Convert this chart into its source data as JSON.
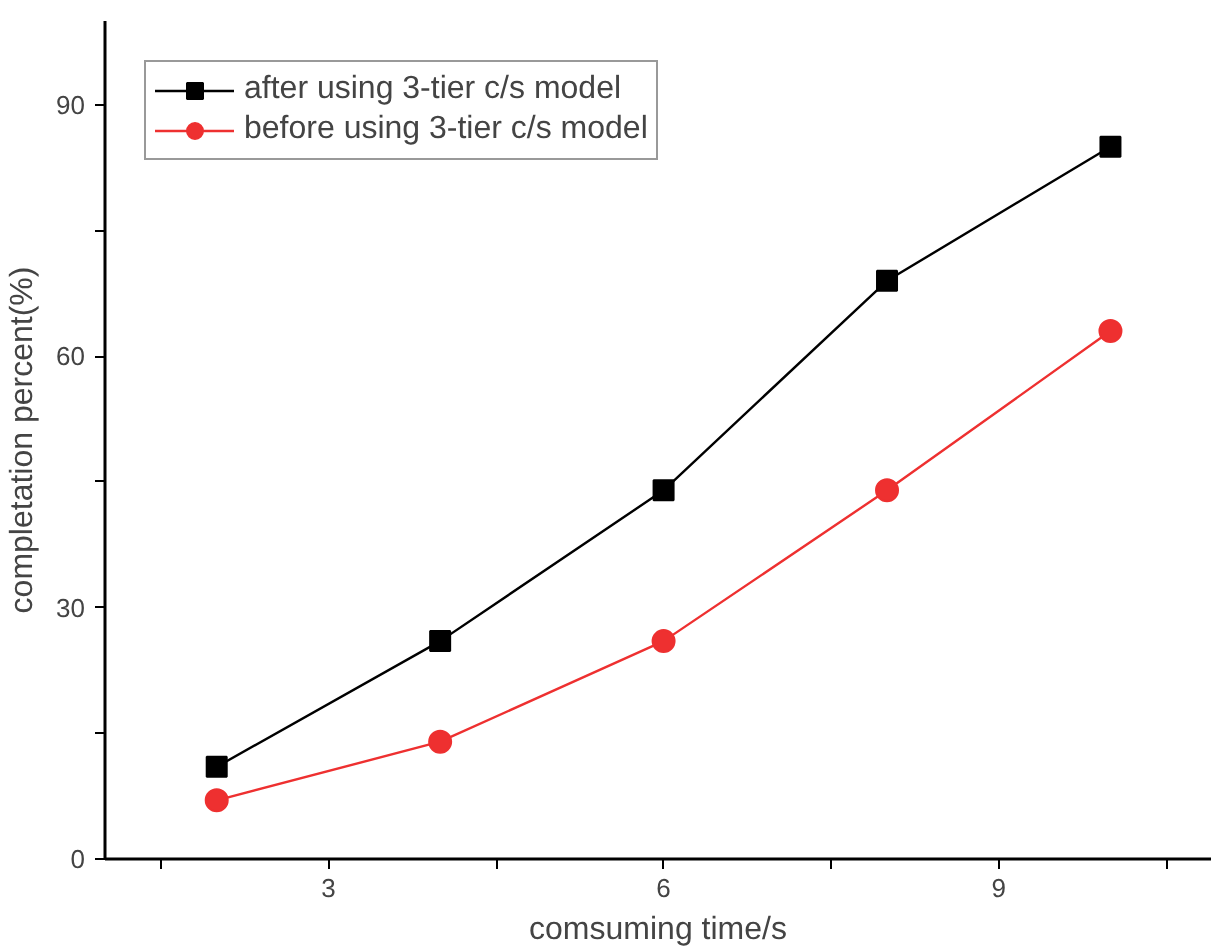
{
  "chart_data": {
    "type": "line",
    "xlabel": "comsuming time/s",
    "ylabel": "completation percent(%)",
    "x": [
      2,
      4,
      6,
      8,
      10
    ],
    "series": [
      {
        "name": "after using 3-tier c/s model",
        "color": "#000000",
        "marker": "square",
        "values": [
          11,
          26,
          44,
          69,
          85
        ]
      },
      {
        "name": "before using 3-tier c/s model",
        "color": "#ee3030",
        "marker": "circle",
        "values": [
          7,
          14,
          26,
          44,
          63
        ]
      }
    ],
    "xlim": [
      1,
      10.9
    ],
    "ylim": [
      0,
      100
    ],
    "xticks": [
      {
        "value": 1.5,
        "label": null
      },
      3,
      {
        "value": 4.5,
        "label": null
      },
      6,
      {
        "value": 7.5,
        "label": null
      },
      9,
      {
        "value": 10.5,
        "label": null
      }
    ],
    "yticks": [
      0,
      {
        "value": 15,
        "label": null
      },
      30,
      {
        "value": 45,
        "label": null
      },
      60,
      {
        "value": 75,
        "label": null
      },
      90
    ],
    "grid": false,
    "legend": "top left",
    "line_style": "solid"
  }
}
